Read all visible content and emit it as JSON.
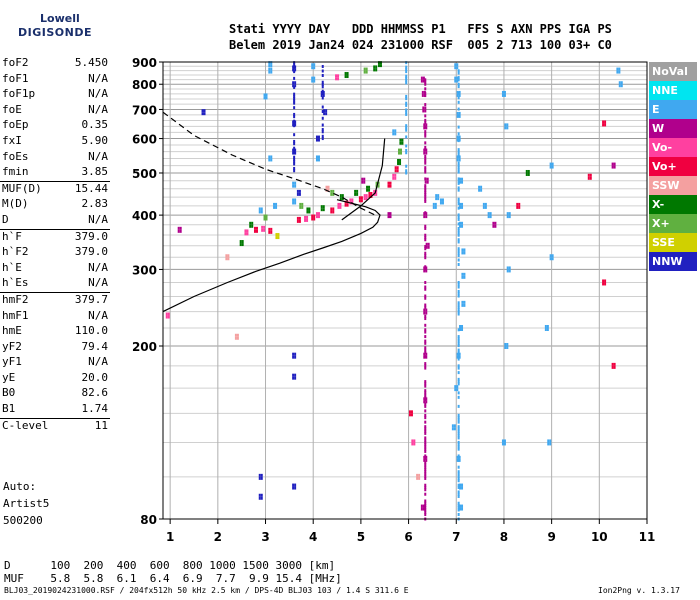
{
  "logo": {
    "line1": "Lowell",
    "line2": "DIGISONDE"
  },
  "header": {
    "line1": "Stati YYYY DAY   DDD HHMMSS P1   FFS S AXN PPS IGA PS",
    "line2": "Belem 2019 Jan24 024 231000 RSF  005 2 713 100 03+ C0"
  },
  "params_group1": [
    {
      "label": "foF2",
      "value": "5.450"
    },
    {
      "label": "foF1",
      "value": "N/A"
    },
    {
      "label": "foF1p",
      "value": "N/A"
    },
    {
      "label": "foE",
      "value": "N/A"
    },
    {
      "label": "foEp",
      "value": "0.35"
    },
    {
      "label": "fxI",
      "value": "5.90"
    },
    {
      "label": "foEs",
      "value": "N/A"
    },
    {
      "label": "fmin",
      "value": "3.85"
    }
  ],
  "params_group2": [
    {
      "label": "MUF(D)",
      "value": "15.44"
    },
    {
      "label": "M(D)",
      "value": "2.83"
    },
    {
      "label": "D",
      "value": "N/A"
    }
  ],
  "params_group3": [
    {
      "label": "h`F",
      "value": "379.0"
    },
    {
      "label": "h`F2",
      "value": "379.0"
    },
    {
      "label": "h`E",
      "value": "N/A"
    },
    {
      "label": "h`Es",
      "value": "N/A"
    }
  ],
  "params_group4": [
    {
      "label": "hmF2",
      "value": "379.7"
    },
    {
      "label": "hmF1",
      "value": "N/A"
    },
    {
      "label": "hmE",
      "value": "110.0"
    },
    {
      "label": "yF2",
      "value": "79.4"
    },
    {
      "label": "yF1",
      "value": "N/A"
    },
    {
      "label": "yE",
      "value": "20.0"
    },
    {
      "label": "B0",
      "value": "82.6"
    },
    {
      "label": "B1",
      "value": "1.74"
    }
  ],
  "params_group5": [
    {
      "label": "C-level",
      "value": "11"
    }
  ],
  "auto": {
    "line1": "Auto:",
    "line2": "Artist5",
    "line3": "500200"
  },
  "dmuf": {
    "d_row": "D      100  200  400  600  800 1000 1500 3000 [km]",
    "muf_row": "MUF    5.8  5.8  6.1  6.4  6.9  7.7  9.9 15.4 [MHz]"
  },
  "footer": {
    "file": "BLJ03_2019024231000.RSF / 204fx512h 50 kHz 2.5 km / DPS-4D BLJ03 103 / 1.4 S 311.6 E",
    "version": "Ion2Png v. 1.3.17"
  },
  "legend": [
    {
      "label": "NoVal",
      "color": "#a0a0a0"
    },
    {
      "label": "NNE",
      "color": "#00e5f0"
    },
    {
      "label": "E",
      "color": "#40a8f0"
    },
    {
      "label": "W",
      "color": "#b0008c"
    },
    {
      "label": "Vo-",
      "color": "#ff40a0"
    },
    {
      "label": "Vo+",
      "color": "#f00040"
    },
    {
      "label": "SSW",
      "color": "#f4a0a0"
    },
    {
      "label": "X-",
      "color": "#007800"
    },
    {
      "label": "X+",
      "color": "#60b040"
    },
    {
      "label": "SSE",
      "color": "#d0d000"
    },
    {
      "label": "NNW",
      "color": "#2020c0"
    }
  ],
  "chart_data": {
    "type": "scatter",
    "xlabel": "",
    "ylabel": "",
    "xlim": [
      0.85,
      11
    ],
    "ylim": [
      80,
      900
    ],
    "x_ticks": [
      "1",
      "2",
      "3",
      "4",
      "5",
      "6",
      "7",
      "8",
      "9",
      "10",
      "11"
    ],
    "y_ticks": [
      "80",
      "200",
      "300",
      "400",
      "500",
      "600",
      "700",
      "800",
      "900"
    ],
    "y_tick_values": [
      80,
      200,
      300,
      400,
      500,
      600,
      700,
      800,
      900
    ],
    "y_scale": "log",
    "grid": true,
    "profile_solid": [
      [
        0.85,
        240
      ],
      [
        1.5,
        260
      ],
      [
        2.2,
        280
      ],
      [
        2.8,
        297
      ],
      [
        3.3,
        310
      ],
      [
        3.8,
        325
      ],
      [
        4.2,
        336
      ],
      [
        4.6,
        348
      ],
      [
        5.0,
        363
      ],
      [
        5.25,
        375
      ],
      [
        5.35,
        385
      ],
      [
        5.4,
        400
      ],
      [
        5.3,
        410
      ],
      [
        5.1,
        418
      ],
      [
        4.8,
        426
      ],
      [
        4.5,
        434
      ]
    ],
    "profile_dashed": [
      [
        0.85,
        690
      ],
      [
        1.5,
        610
      ],
      [
        2.3,
        550
      ],
      [
        3.0,
        510
      ],
      [
        3.6,
        485
      ],
      [
        4.2,
        460
      ],
      [
        4.6,
        440
      ],
      [
        5.0,
        415
      ],
      [
        5.3,
        400
      ]
    ],
    "trace_segment": [
      [
        4.6,
        390
      ],
      [
        5.0,
        420
      ],
      [
        5.3,
        450
      ],
      [
        5.45,
        520
      ],
      [
        5.5,
        600
      ]
    ],
    "points": [
      {
        "x": 2.6,
        "y": 365,
        "c": "Vo-"
      },
      {
        "x": 2.8,
        "y": 370,
        "c": "Vo+"
      },
      {
        "x": 2.95,
        "y": 372,
        "c": "Vo-"
      },
      {
        "x": 3.1,
        "y": 368,
        "c": "Vo+"
      },
      {
        "x": 2.7,
        "y": 380,
        "c": "X-"
      },
      {
        "x": 3.0,
        "y": 395,
        "c": "X+"
      },
      {
        "x": 2.9,
        "y": 410,
        "c": "E"
      },
      {
        "x": 3.2,
        "y": 420,
        "c": "E"
      },
      {
        "x": 2.5,
        "y": 345,
        "c": "X-"
      },
      {
        "x": 3.25,
        "y": 358,
        "c": "SSE"
      },
      {
        "x": 3.7,
        "y": 390,
        "c": "Vo+"
      },
      {
        "x": 3.85,
        "y": 392,
        "c": "Vo-"
      },
      {
        "x": 4.0,
        "y": 395,
        "c": "Vo+"
      },
      {
        "x": 4.1,
        "y": 400,
        "c": "Vo-"
      },
      {
        "x": 3.9,
        "y": 410,
        "c": "X-"
      },
      {
        "x": 3.75,
        "y": 420,
        "c": "X+"
      },
      {
        "x": 4.2,
        "y": 415,
        "c": "X-"
      },
      {
        "x": 3.6,
        "y": 430,
        "c": "E"
      },
      {
        "x": 3.7,
        "y": 450,
        "c": "NNW"
      },
      {
        "x": 3.6,
        "y": 470,
        "c": "E"
      },
      {
        "x": 4.4,
        "y": 410,
        "c": "Vo+"
      },
      {
        "x": 4.55,
        "y": 420,
        "c": "Vo-"
      },
      {
        "x": 4.7,
        "y": 425,
        "c": "Vo+"
      },
      {
        "x": 4.8,
        "y": 430,
        "c": "Vo-"
      },
      {
        "x": 4.6,
        "y": 440,
        "c": "X-"
      },
      {
        "x": 4.4,
        "y": 450,
        "c": "X+"
      },
      {
        "x": 4.9,
        "y": 450,
        "c": "X-"
      },
      {
        "x": 4.3,
        "y": 460,
        "c": "SSW"
      },
      {
        "x": 5.0,
        "y": 435,
        "c": "Vo+"
      },
      {
        "x": 5.1,
        "y": 440,
        "c": "Vo-"
      },
      {
        "x": 5.2,
        "y": 445,
        "c": "Vo+"
      },
      {
        "x": 5.3,
        "y": 450,
        "c": "Vo-"
      },
      {
        "x": 5.15,
        "y": 460,
        "c": "X-"
      },
      {
        "x": 5.35,
        "y": 470,
        "c": "X+"
      },
      {
        "x": 5.05,
        "y": 480,
        "c": "W"
      },
      {
        "x": 5.6,
        "y": 470,
        "c": "Vo+"
      },
      {
        "x": 5.7,
        "y": 490,
        "c": "Vo-"
      },
      {
        "x": 5.75,
        "y": 510,
        "c": "Vo+"
      },
      {
        "x": 5.8,
        "y": 530,
        "c": "X-"
      },
      {
        "x": 5.82,
        "y": 560,
        "c": "X+"
      },
      {
        "x": 5.85,
        "y": 590,
        "c": "X-"
      },
      {
        "x": 5.7,
        "y": 620,
        "c": "E"
      },
      {
        "x": 5.6,
        "y": 400,
        "c": "W"
      },
      {
        "x": 4.7,
        "y": 840,
        "c": "X-"
      },
      {
        "x": 4.5,
        "y": 830,
        "c": "Vo-"
      },
      {
        "x": 5.3,
        "y": 870,
        "c": "X-"
      },
      {
        "x": 5.1,
        "y": 860,
        "c": "X+"
      },
      {
        "x": 5.4,
        "y": 890,
        "c": "X-"
      },
      {
        "x": 3.6,
        "y": 870,
        "c": "NNW"
      },
      {
        "x": 3.6,
        "y": 800,
        "c": "NNW"
      },
      {
        "x": 3.6,
        "y": 650,
        "c": "NNW"
      },
      {
        "x": 3.6,
        "y": 560,
        "c": "NNW"
      },
      {
        "x": 3.6,
        "y": 190,
        "c": "NNW"
      },
      {
        "x": 3.6,
        "y": 170,
        "c": "NNW"
      },
      {
        "x": 3.6,
        "y": 95,
        "c": "NNW"
      },
      {
        "x": 4.0,
        "y": 880,
        "c": "E"
      },
      {
        "x": 4.0,
        "y": 820,
        "c": "E"
      },
      {
        "x": 4.1,
        "y": 600,
        "c": "NNW"
      },
      {
        "x": 4.1,
        "y": 540,
        "c": "E"
      },
      {
        "x": 4.2,
        "y": 760,
        "c": "NNW"
      },
      {
        "x": 4.25,
        "y": 690,
        "c": "NNW"
      },
      {
        "x": 3.1,
        "y": 890,
        "c": "E"
      },
      {
        "x": 3.1,
        "y": 860,
        "c": "E"
      },
      {
        "x": 3.0,
        "y": 750,
        "c": "E"
      },
      {
        "x": 3.1,
        "y": 540,
        "c": "E"
      },
      {
        "x": 2.9,
        "y": 100,
        "c": "NNW"
      },
      {
        "x": 2.9,
        "y": 90,
        "c": "NNW"
      },
      {
        "x": 6.3,
        "y": 820,
        "c": "W"
      },
      {
        "x": 6.32,
        "y": 760,
        "c": "W"
      },
      {
        "x": 6.33,
        "y": 700,
        "c": "W"
      },
      {
        "x": 6.35,
        "y": 640,
        "c": "W"
      },
      {
        "x": 6.35,
        "y": 560,
        "c": "W"
      },
      {
        "x": 6.38,
        "y": 480,
        "c": "W"
      },
      {
        "x": 6.35,
        "y": 400,
        "c": "W"
      },
      {
        "x": 6.4,
        "y": 340,
        "c": "W"
      },
      {
        "x": 6.35,
        "y": 300,
        "c": "W"
      },
      {
        "x": 6.35,
        "y": 240,
        "c": "W"
      },
      {
        "x": 6.35,
        "y": 190,
        "c": "W"
      },
      {
        "x": 6.35,
        "y": 150,
        "c": "W"
      },
      {
        "x": 6.35,
        "y": 110,
        "c": "W"
      },
      {
        "x": 6.3,
        "y": 85,
        "c": "W"
      },
      {
        "x": 6.55,
        "y": 420,
        "c": "E"
      },
      {
        "x": 6.6,
        "y": 440,
        "c": "E"
      },
      {
        "x": 6.7,
        "y": 430,
        "c": "E"
      },
      {
        "x": 7.0,
        "y": 880,
        "c": "E"
      },
      {
        "x": 7.0,
        "y": 820,
        "c": "E"
      },
      {
        "x": 7.05,
        "y": 760,
        "c": "E"
      },
      {
        "x": 7.05,
        "y": 680,
        "c": "E"
      },
      {
        "x": 7.05,
        "y": 600,
        "c": "E"
      },
      {
        "x": 7.05,
        "y": 540,
        "c": "E"
      },
      {
        "x": 7.1,
        "y": 480,
        "c": "E"
      },
      {
        "x": 7.1,
        "y": 420,
        "c": "E"
      },
      {
        "x": 7.1,
        "y": 380,
        "c": "E"
      },
      {
        "x": 7.15,
        "y": 330,
        "c": "E"
      },
      {
        "x": 7.15,
        "y": 290,
        "c": "E"
      },
      {
        "x": 7.15,
        "y": 250,
        "c": "E"
      },
      {
        "x": 7.1,
        "y": 220,
        "c": "E"
      },
      {
        "x": 7.05,
        "y": 190,
        "c": "E"
      },
      {
        "x": 7.0,
        "y": 160,
        "c": "E"
      },
      {
        "x": 6.95,
        "y": 130,
        "c": "E"
      },
      {
        "x": 7.05,
        "y": 110,
        "c": "E"
      },
      {
        "x": 7.1,
        "y": 95,
        "c": "E"
      },
      {
        "x": 7.1,
        "y": 85,
        "c": "E"
      },
      {
        "x": 6.1,
        "y": 120,
        "c": "Vo-"
      },
      {
        "x": 6.2,
        "y": 100,
        "c": "SSW"
      },
      {
        "x": 6.05,
        "y": 140,
        "c": "Vo+"
      },
      {
        "x": 7.6,
        "y": 420,
        "c": "E"
      },
      {
        "x": 7.7,
        "y": 400,
        "c": "E"
      },
      {
        "x": 7.5,
        "y": 460,
        "c": "E"
      },
      {
        "x": 7.8,
        "y": 380,
        "c": "W"
      },
      {
        "x": 8.0,
        "y": 760,
        "c": "E"
      },
      {
        "x": 8.05,
        "y": 640,
        "c": "E"
      },
      {
        "x": 8.1,
        "y": 400,
        "c": "E"
      },
      {
        "x": 8.1,
        "y": 300,
        "c": "E"
      },
      {
        "x": 8.05,
        "y": 200,
        "c": "E"
      },
      {
        "x": 8.0,
        "y": 120,
        "c": "E"
      },
      {
        "x": 8.3,
        "y": 420,
        "c": "Vo+"
      },
      {
        "x": 8.5,
        "y": 500,
        "c": "X-"
      },
      {
        "x": 9.0,
        "y": 520,
        "c": "E"
      },
      {
        "x": 9.0,
        "y": 320,
        "c": "E"
      },
      {
        "x": 8.9,
        "y": 220,
        "c": "E"
      },
      {
        "x": 8.95,
        "y": 120,
        "c": "E"
      },
      {
        "x": 9.8,
        "y": 490,
        "c": "Vo+"
      },
      {
        "x": 10.1,
        "y": 650,
        "c": "Vo+"
      },
      {
        "x": 10.1,
        "y": 280,
        "c": "Vo+"
      },
      {
        "x": 10.3,
        "y": 180,
        "c": "Vo+"
      },
      {
        "x": 10.3,
        "y": 520,
        "c": "W"
      },
      {
        "x": 10.4,
        "y": 860,
        "c": "E"
      },
      {
        "x": 10.45,
        "y": 800,
        "c": "E"
      },
      {
        "x": 1.7,
        "y": 690,
        "c": "NNW"
      },
      {
        "x": 1.2,
        "y": 370,
        "c": "W"
      },
      {
        "x": 2.2,
        "y": 320,
        "c": "SSW"
      },
      {
        "x": 2.4,
        "y": 210,
        "c": "SSW"
      },
      {
        "x": 0.95,
        "y": 235,
        "c": "Vo-"
      }
    ],
    "vertical_streaks": [
      {
        "x": 3.6,
        "y1": 500,
        "y2": 900,
        "c": "NNW"
      },
      {
        "x": 4.2,
        "y1": 600,
        "y2": 880,
        "c": "NNW"
      },
      {
        "x": 6.35,
        "y1": 80,
        "y2": 830,
        "c": "W"
      },
      {
        "x": 7.05,
        "y1": 80,
        "y2": 900,
        "c": "E"
      },
      {
        "x": 5.95,
        "y1": 500,
        "y2": 900,
        "c": "E"
      }
    ]
  }
}
